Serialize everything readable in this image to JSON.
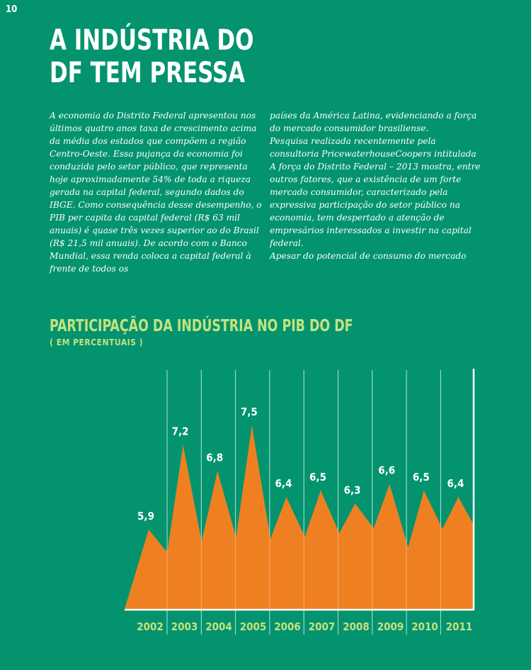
{
  "page": {
    "number": "10",
    "title_lines": [
      "A INDÚSTRIA DO",
      "DF TEM PRESSA"
    ]
  },
  "article": {
    "left_column": [
      "A economia do Distrito Federal apresentou nos últimos quatro anos taxa de crescimento acima da média dos estados que compõem a região Centro-Oeste. Essa pujança da economia foi conduzida pelo setor público, que representa hoje aproximadamente 54% de toda a riqueza gerada na capital federal, segundo dados do IBGE. Como consequência desse desempenho, o PIB per capita da capital federal (R$ 63 mil anuais) é quase três vezes superior ao do Brasil (R$ 21,5 mil anuais). De acordo com o Banco Mundial, essa renda coloca a capital federal à frente de todos os"
    ],
    "right_column": [
      "países da América Latina, evidenciando a força do mercado consumidor brasiliense.",
      "Pesquisa realizada recentemente pela consultoria PricewaterhouseCoopers intitulada A força do Distrito Federal – 2013 mostra, entre outros fatores, que a existência de um forte mercado consumidor, caracterizado pela expressiva participação do setor público na economia, tem despertado a atenção de empresários interessados a investir na capital federal.",
      "Apesar do potencial de consumo do mercado"
    ]
  },
  "colors": {
    "background": "#03936f",
    "fill": "#ef8022",
    "title_accent": "#c5e27d",
    "text": "#ffffff"
  },
  "chart_data": {
    "type": "area",
    "title": "PARTICIPAÇÃO DA INDÚSTRIA NO PIB DO DF",
    "subtitle": "( EM PERCENTUAIS )",
    "categories": [
      "2002",
      "2003",
      "2004",
      "2005",
      "2006",
      "2007",
      "2008",
      "2009",
      "2010",
      "2011"
    ],
    "values": [
      5.9,
      7.2,
      6.8,
      7.5,
      6.4,
      6.5,
      6.3,
      6.6,
      6.5,
      6.4
    ],
    "value_labels": [
      "5,9",
      "7,2",
      "6,8",
      "7,5",
      "6,4",
      "6,5",
      "6,3",
      "6,6",
      "6,5",
      "6,4"
    ],
    "style": "peaks per year with dips between",
    "grid": "vertical lines between years"
  }
}
